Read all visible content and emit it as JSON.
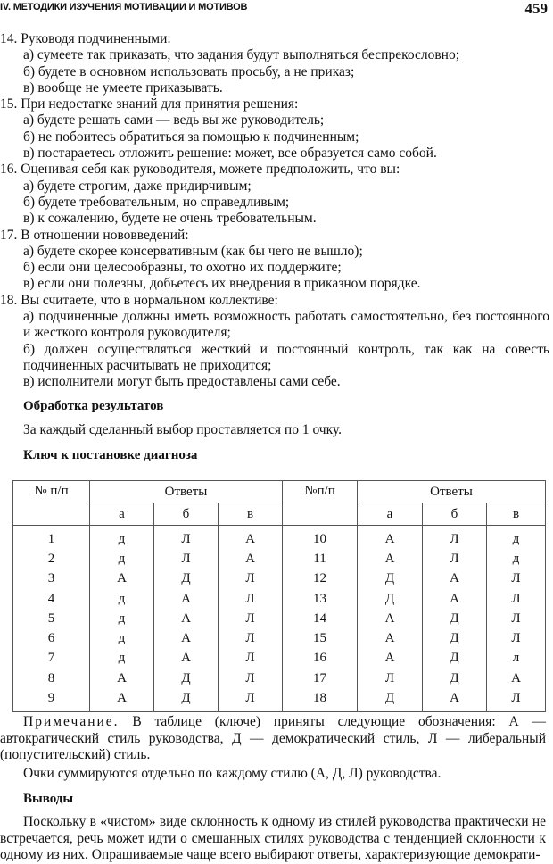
{
  "header": {
    "section": "IV. МЕТОДИКИ ИЗУЧЕНИЯ МОТИВАЦИИ И МОТИВОВ",
    "page_number": "459"
  },
  "questions": [
    {
      "num": "14.",
      "text": "Руководя подчиненными:",
      "options": [
        "а) сумеете так приказать, что задания будут выполняться беспрекословно;",
        "б) будете в основном использовать просьбу, а не приказ;",
        "в) вообще не умеете приказывать."
      ]
    },
    {
      "num": "15.",
      "text": "При недостатке знаний для принятия решения:",
      "options": [
        "а) будете решать сами — ведь вы же руководитель;",
        "б) не побоитесь обратиться за помощью к подчиненным;",
        "в) постараетесь отложить решение: может, все образуется само собой."
      ]
    },
    {
      "num": "16.",
      "text": "Оценивая себя как руководителя, можете предположить, что вы:",
      "options": [
        "а) будете строгим, даже придирчивым;",
        "б) будете требовательным, но справедливым;",
        "в) к сожалению, будете не очень требовательным."
      ]
    },
    {
      "num": "17.",
      "text": "В отношении нововведений:",
      "options": [
        "а) будете скорее консервативным (как бы чего не вышло);",
        "б) если они целесообразны, то охотно их поддержите;",
        "в) если они полезны, добьетесь их внедрения в приказном порядке."
      ]
    },
    {
      "num": "18.",
      "text": "Вы считаете, что в нормальном коллективе:",
      "options": [
        "а) подчиненные должны иметь возможность работать самостоятельно, без постоянного и жесткого контроля руководителя;",
        "б) должен осуществляться жесткий и постоянный контроль, так как на совесть подчиненных расчитывать не приходится;",
        "в) исполнители могут быть предоставлены сами себе."
      ]
    }
  ],
  "processing": {
    "title": "Обработка результатов",
    "text": "За каждый сделанный выбор проставляется по 1 очку."
  },
  "key": {
    "title": "Ключ к постановке диагноза",
    "col_num": "№ п/п",
    "col_num2": "№п/п",
    "col_answers": "Ответы",
    "sub": [
      "а",
      "б",
      "в"
    ],
    "rows": [
      [
        "1",
        "д",
        "Л",
        "А",
        "10",
        "А",
        "Л",
        "д"
      ],
      [
        "2",
        "д",
        "Л",
        "А",
        "11",
        "А",
        "Л",
        "д"
      ],
      [
        "3",
        "А",
        "Д",
        "Л",
        "12",
        "Д",
        "А",
        "Л"
      ],
      [
        "4",
        "д",
        "А",
        "Л",
        "13",
        "Д",
        "А",
        "Л"
      ],
      [
        "5",
        "д",
        "А",
        "Л",
        "14",
        "А",
        "Д",
        "Л"
      ],
      [
        "6",
        "д",
        "А",
        "Л",
        "15",
        "А",
        "Д",
        "Л"
      ],
      [
        "7",
        "д",
        "А",
        "Л",
        "16",
        "А",
        "Д",
        "л"
      ],
      [
        "8",
        "А",
        "Д",
        "Л",
        "17",
        "Л",
        "Д",
        "А"
      ],
      [
        "9",
        "А",
        "Д",
        "Л",
        "18",
        "Д",
        "А",
        "Л"
      ]
    ]
  },
  "note": {
    "label": "Примечание.",
    "text": " В таблице (ключе) приняты следующие обозначения: А — автократический стиль руководства, Д — демократический стиль, Л — либеральный (попустительский) стиль."
  },
  "sum_text": "Очки суммируются отдельно по каждому стилю (А, Д, Л) руководства.",
  "conclusions": {
    "title": "Выводы",
    "text": "Поскольку в «чистом» виде склонность к одному из стилей руководства практически не встречается, речь может идти о смешанных стилях руководства с тенденцией склонности к одному из них. Опрашиваемые чаще всего выбирают ответы, характеризующие демократи-"
  }
}
